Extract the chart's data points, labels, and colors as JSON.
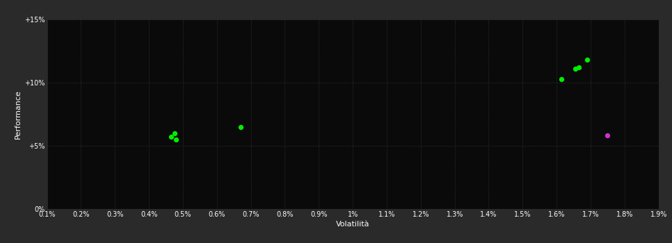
{
  "background_color": "#2a2a2a",
  "plot_bg_color": "#0a0a0a",
  "grid_color": "#3a3a3a",
  "text_color": "#ffffff",
  "xlabel": "Volatilità",
  "ylabel": "Performance",
  "xlim": [
    0.001,
    0.019
  ],
  "ylim": [
    0.0,
    0.15
  ],
  "xticks": [
    0.001,
    0.002,
    0.003,
    0.004,
    0.005,
    0.006,
    0.007,
    0.008,
    0.009,
    0.01,
    0.011,
    0.012,
    0.013,
    0.014,
    0.015,
    0.016,
    0.017,
    0.018,
    0.019
  ],
  "yticks": [
    0.0,
    0.05,
    0.1,
    0.15
  ],
  "ytick_labels": [
    "0%",
    "+5%",
    "+10%",
    "+15%"
  ],
  "xtick_labels": [
    "0.1%",
    "0.2%",
    "0.3%",
    "0.4%",
    "0.5%",
    "0.6%",
    "0.7%",
    "0.8%",
    "0.9%",
    "1%",
    "1.1%",
    "1.2%",
    "1.3%",
    "1.4%",
    "1.5%",
    "1.6%",
    "1.7%",
    "1.8%",
    "1.9%"
  ],
  "green_points": [
    [
      0.00465,
      0.057
    ],
    [
      0.00475,
      0.06
    ],
    [
      0.0048,
      0.055
    ],
    [
      0.0067,
      0.065
    ],
    [
      0.01615,
      0.103
    ],
    [
      0.01655,
      0.111
    ],
    [
      0.01665,
      0.112
    ],
    [
      0.0169,
      0.118
    ]
  ],
  "magenta_points": [
    [
      0.0175,
      0.058
    ]
  ],
  "green_color": "#00ee00",
  "magenta_color": "#cc33cc",
  "point_size": 18,
  "font_size_labels": 8,
  "font_size_ticks": 7,
  "font_size_axis_label": 8
}
